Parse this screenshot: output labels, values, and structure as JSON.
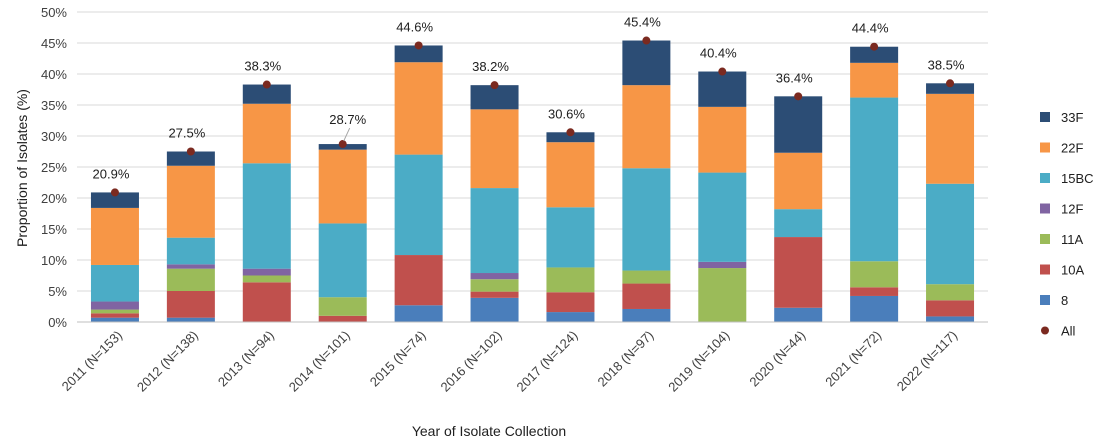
{
  "chart_data": {
    "type": "bar",
    "stacked": true,
    "xlabel": "Year of Isolate Collection",
    "ylabel": "Proportion of Isolates (%)",
    "ylim": [
      0,
      50
    ],
    "yticks": [
      "0%",
      "5%",
      "10%",
      "15%",
      "20%",
      "25%",
      "30%",
      "35%",
      "40%",
      "45%",
      "50%"
    ],
    "grid": true,
    "legend_position": "right",
    "categories": [
      "2011 (N=153)",
      "2012 (N=138)",
      "2013 (N=94)",
      "2014 (N=101)",
      "2015 (N=74)",
      "2016 (N=102)",
      "2017 (N=124)",
      "2018 (N=97)",
      "2019 (N=104)",
      "2020 (N=44)",
      "2021 (N=72)",
      "2022 (N=117)"
    ],
    "series": [
      {
        "name": "8",
        "color": "#4a7ebb",
        "values": [
          0.7,
          0.7,
          0.0,
          0.0,
          2.7,
          3.9,
          1.6,
          2.1,
          0.0,
          2.3,
          4.2,
          0.9
        ]
      },
      {
        "name": "10A",
        "color": "#c0504d",
        "values": [
          0.7,
          4.3,
          6.4,
          1.0,
          8.1,
          1.0,
          3.2,
          4.1,
          0.0,
          11.4,
          1.4,
          2.6
        ]
      },
      {
        "name": "11A",
        "color": "#9bbb59",
        "values": [
          0.6,
          3.6,
          1.1,
          3.0,
          0.0,
          2.0,
          4.0,
          2.1,
          8.7,
          0.0,
          4.2,
          2.6
        ]
      },
      {
        "name": "12F",
        "color": "#8064a2",
        "values": [
          1.3,
          0.7,
          1.1,
          0.0,
          0.0,
          1.0,
          0.0,
          0.0,
          1.0,
          0.0,
          0.0,
          0.0
        ]
      },
      {
        "name": "15BC",
        "color": "#4bacc6",
        "values": [
          5.9,
          4.3,
          17.0,
          11.9,
          16.2,
          13.7,
          9.7,
          16.5,
          14.4,
          4.5,
          26.4,
          16.2
        ]
      },
      {
        "name": "22F",
        "color": "#f79646",
        "values": [
          9.2,
          11.6,
          9.6,
          11.9,
          14.9,
          12.7,
          10.5,
          13.4,
          10.6,
          9.1,
          5.6,
          14.5
        ]
      },
      {
        "name": "33F",
        "color": "#2c4d75",
        "values": [
          2.5,
          2.3,
          3.1,
          0.9,
          2.7,
          3.9,
          1.6,
          7.2,
          5.7,
          9.1,
          2.6,
          1.7
        ]
      }
    ],
    "all": {
      "name": "All",
      "color": "#7b2a20",
      "values": [
        20.9,
        27.5,
        38.3,
        28.7,
        44.6,
        38.2,
        30.6,
        45.4,
        40.4,
        36.4,
        44.4,
        38.5
      ],
      "labels": [
        "20.9%",
        "27.5%",
        "38.3%",
        "28.7%",
        "44.6%",
        "38.2%",
        "30.6%",
        "45.4%",
        "40.4%",
        "36.4%",
        "44.4%",
        "38.5%"
      ]
    },
    "legend_order": [
      "33F",
      "22F",
      "15BC",
      "12F",
      "11A",
      "10A",
      "8",
      "All"
    ]
  }
}
